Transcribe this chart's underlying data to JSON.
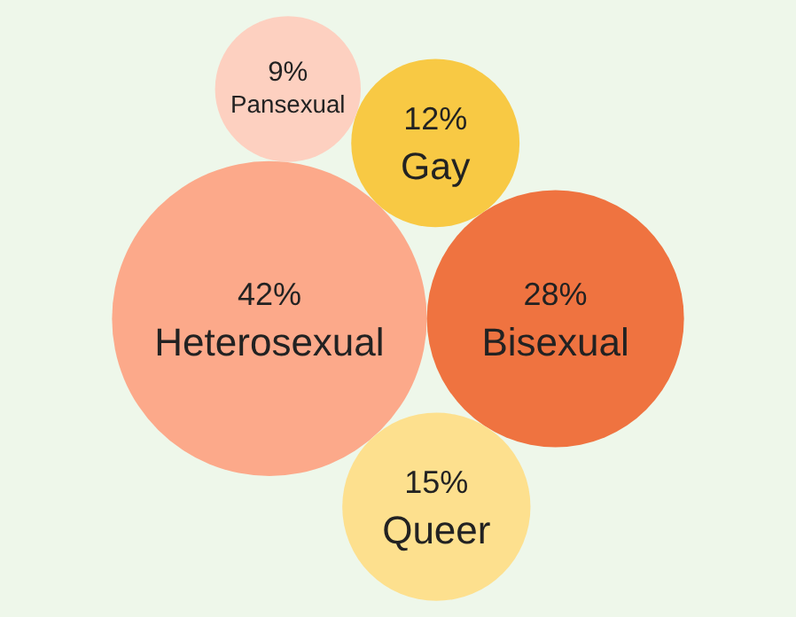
{
  "chart_data": {
    "type": "other",
    "categories": [
      "Heterosexual",
      "Bisexual",
      "Queer",
      "Gay",
      "Pansexual"
    ],
    "values": [
      42,
      28,
      15,
      12,
      9
    ],
    "value_labels": [
      "42%",
      "28%",
      "15%",
      "12%",
      "9%"
    ],
    "colors": [
      "#fca98a",
      "#ef7340",
      "#fde08e",
      "#f8c944",
      "#fdd0c0"
    ]
  }
}
